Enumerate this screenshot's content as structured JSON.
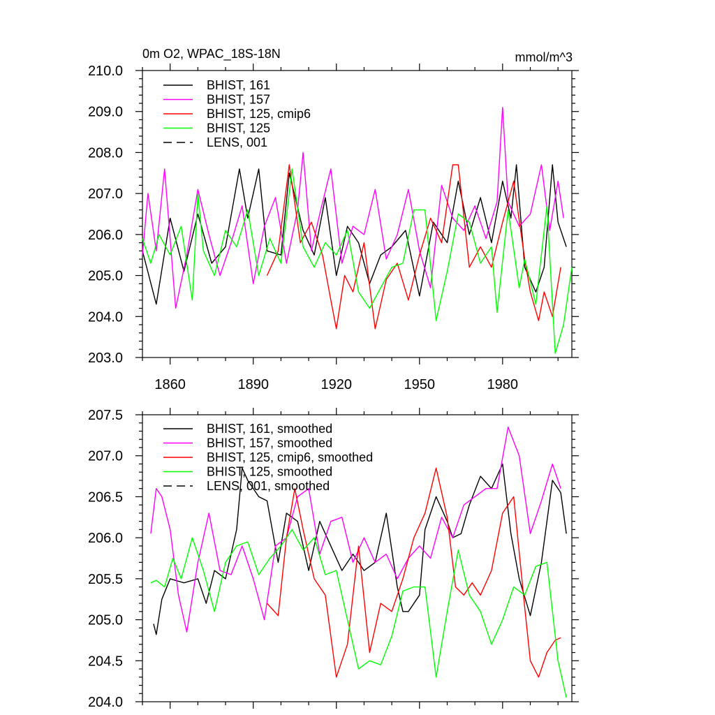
{
  "chart_data": [
    {
      "type": "line",
      "title_left": "0m O2, WPAC_18S-18N",
      "title_right": "mmol/m^3",
      "xlim": [
        1850,
        2005
      ],
      "ylim": [
        203.0,
        210.0
      ],
      "yticks": [
        203.0,
        204.0,
        205.0,
        206.0,
        207.0,
        208.0,
        209.0,
        210.0
      ],
      "ytick_labels": [
        "203.0",
        "204.0",
        "205.0",
        "206.0",
        "207.0",
        "208.0",
        "209.0",
        "210.0"
      ],
      "xticks": [
        1860,
        1890,
        1920,
        1950,
        1980
      ],
      "xtick_labels": [
        "1860",
        "1890",
        "1920",
        "1950",
        "1980"
      ],
      "legend": [
        {
          "label": "BHIST, 161",
          "color": "#000000",
          "dash": "solid"
        },
        {
          "label": "BHIST, 157",
          "color": "#ff00ff",
          "dash": "solid"
        },
        {
          "label": "BHIST, 125, cmip6",
          "color": "#ff0000",
          "dash": "solid"
        },
        {
          "label": "BHIST, 125",
          "color": "#00ff00",
          "dash": "solid"
        },
        {
          "label": "LENS, 001",
          "color": "#000000",
          "dash": "dashed"
        }
      ],
      "series": [
        {
          "name": "BHIST, 161",
          "color": "#000000",
          "x": [
            1850,
            1855,
            1860,
            1865,
            1870,
            1875,
            1880,
            1885,
            1888,
            1892,
            1895,
            1900,
            1903,
            1908,
            1912,
            1916,
            1920,
            1924,
            1928,
            1932,
            1936,
            1940,
            1945,
            1950,
            1955,
            1960,
            1964,
            1968,
            1972,
            1976,
            1980,
            1983,
            1985,
            1988,
            1992,
            1995,
            1998,
            2000,
            2003
          ],
          "y": [
            205.6,
            204.3,
            206.4,
            205.1,
            206.5,
            205.3,
            205.7,
            207.6,
            206.4,
            207.6,
            205.6,
            205.5,
            207.5,
            206.1,
            205.5,
            206.9,
            205.0,
            206.2,
            205.8,
            204.8,
            205.5,
            205.7,
            206.1,
            204.5,
            206.3,
            205.8,
            207.3,
            206.0,
            206.9,
            205.8,
            207.3,
            206.4,
            207.7,
            205.2,
            204.6,
            205.2,
            207.7,
            206.3,
            205.7
          ]
        },
        {
          "name": "BHIST, 157",
          "color": "#ff00ff",
          "x": [
            1850,
            1852,
            1855,
            1858,
            1862,
            1866,
            1870,
            1874,
            1878,
            1882,
            1886,
            1890,
            1894,
            1898,
            1902,
            1906,
            1908,
            1911,
            1914,
            1918,
            1922,
            1926,
            1930,
            1934,
            1938,
            1942,
            1946,
            1950,
            1954,
            1958,
            1962,
            1966,
            1970,
            1974,
            1978,
            1980,
            1982,
            1986,
            1990,
            1994,
            1997,
            2000,
            2002
          ],
          "y": [
            205.5,
            207.0,
            205.6,
            207.6,
            204.2,
            205.5,
            207.1,
            206.0,
            205.0,
            205.8,
            206.7,
            204.8,
            206.2,
            206.9,
            205.3,
            206.6,
            208.0,
            205.6,
            206.5,
            207.6,
            205.3,
            206.2,
            206.0,
            207.1,
            205.4,
            206.0,
            207.1,
            205.6,
            204.7,
            207.2,
            206.4,
            206.1,
            206.7,
            205.9,
            206.8,
            209.1,
            206.8,
            206.2,
            206.5,
            207.7,
            206.1,
            207.3,
            206.4
          ]
        },
        {
          "name": "BHIST, 125, cmip6",
          "color": "#ff0000",
          "x": [
            1895,
            1899,
            1903,
            1907,
            1911,
            1915,
            1918,
            1920,
            1923,
            1926,
            1930,
            1934,
            1938,
            1942,
            1946,
            1950,
            1954,
            1958,
            1962,
            1964,
            1968,
            1972,
            1976,
            1980,
            1984,
            1988,
            1990,
            1993,
            1995,
            1998,
            2001
          ],
          "y": [
            205.0,
            205.6,
            207.7,
            205.8,
            206.3,
            205.5,
            204.4,
            203.7,
            205.0,
            204.6,
            205.8,
            203.7,
            204.9,
            205.3,
            204.4,
            205.5,
            206.4,
            205.8,
            207.7,
            207.7,
            205.2,
            205.7,
            205.2,
            206.3,
            207.3,
            205.4,
            204.6,
            203.9,
            204.6,
            204.0,
            205.2
          ]
        },
        {
          "name": "BHIST, 125",
          "color": "#00ff00",
          "x": [
            1850,
            1853,
            1856,
            1860,
            1864,
            1868,
            1870,
            1872,
            1876,
            1880,
            1884,
            1888,
            1892,
            1896,
            1900,
            1904,
            1908,
            1912,
            1916,
            1920,
            1924,
            1928,
            1932,
            1936,
            1940,
            1944,
            1948,
            1952,
            1956,
            1960,
            1964,
            1968,
            1972,
            1976,
            1978,
            1982,
            1986,
            1988,
            1992,
            1996,
            1999,
            2002,
            2005
          ],
          "y": [
            205.9,
            205.3,
            206.0,
            205.5,
            206.2,
            204.4,
            207.0,
            205.6,
            205.0,
            206.1,
            205.7,
            206.6,
            205.0,
            205.9,
            205.3,
            207.6,
            205.7,
            205.2,
            205.8,
            205.5,
            206.1,
            204.6,
            204.2,
            204.7,
            205.2,
            205.3,
            206.6,
            206.6,
            203.9,
            205.1,
            206.5,
            206.3,
            205.3,
            205.7,
            204.1,
            206.6,
            204.7,
            205.4,
            204.3,
            206.7,
            203.1,
            203.8,
            205.2
          ]
        }
      ]
    },
    {
      "type": "line",
      "xlim": [
        1850,
        2005
      ],
      "ylim": [
        204.0,
        207.5
      ],
      "yticks": [
        204.0,
        204.5,
        205.0,
        205.5,
        206.0,
        206.5,
        207.0,
        207.5
      ],
      "ytick_labels": [
        "204.0",
        "204.5",
        "205.0",
        "205.5",
        "206.0",
        "206.5",
        "207.0",
        "207.5"
      ],
      "xticks": [
        1860,
        1890,
        1920,
        1950,
        1980
      ],
      "legend": [
        {
          "label": "BHIST, 161, smoothed",
          "color": "#000000",
          "dash": "solid"
        },
        {
          "label": "BHIST, 157, smoothed",
          "color": "#ff00ff",
          "dash": "solid"
        },
        {
          "label": "BHIST, 125, cmip6, smoothed",
          "color": "#ff0000",
          "dash": "solid"
        },
        {
          "label": "BHIST, 125, smoothed",
          "color": "#00ff00",
          "dash": "solid"
        },
        {
          "label": "LENS, 001, smoothed",
          "color": "#000000",
          "dash": "dashed"
        }
      ],
      "series": [
        {
          "name": "BHIST, 161, smoothed",
          "color": "#000000",
          "x": [
            1854,
            1855,
            1857,
            1860,
            1865,
            1870,
            1873,
            1876,
            1880,
            1884,
            1886,
            1888,
            1892,
            1895,
            1899,
            1902,
            1906,
            1910,
            1914,
            1918,
            1922,
            1926,
            1930,
            1934,
            1938,
            1942,
            1944,
            1946,
            1950,
            1952,
            1956,
            1960,
            1962,
            1965,
            1968,
            1972,
            1976,
            1980,
            1983,
            1986,
            1990,
            1994,
            1998,
            2001,
            2003
          ],
          "y": [
            204.95,
            204.82,
            205.25,
            205.5,
            205.45,
            205.5,
            205.2,
            205.6,
            205.5,
            206.1,
            206.85,
            206.7,
            206.5,
            206.45,
            205.7,
            206.3,
            206.2,
            205.6,
            206.2,
            205.9,
            205.6,
            205.8,
            205.6,
            205.7,
            206.3,
            205.4,
            205.1,
            205.1,
            205.3,
            206.1,
            206.5,
            206.2,
            206.0,
            206.05,
            206.4,
            206.75,
            206.6,
            206.9,
            206.05,
            205.5,
            205.05,
            205.7,
            206.7,
            206.55,
            206.05
          ]
        },
        {
          "name": "BHIST, 157, smoothed",
          "color": "#ff00ff",
          "x": [
            1853,
            1855,
            1857,
            1860,
            1863,
            1866,
            1870,
            1874,
            1878,
            1882,
            1886,
            1890,
            1894,
            1898,
            1902,
            1906,
            1910,
            1914,
            1918,
            1922,
            1926,
            1930,
            1934,
            1938,
            1942,
            1946,
            1950,
            1954,
            1958,
            1962,
            1966,
            1970,
            1974,
            1978,
            1982,
            1986,
            1990,
            1994,
            1998,
            2001
          ],
          "y": [
            206.05,
            206.6,
            206.5,
            206.1,
            205.3,
            204.85,
            205.7,
            206.3,
            205.6,
            205.55,
            205.9,
            205.5,
            205.0,
            205.9,
            206.0,
            206.5,
            206.6,
            205.8,
            206.2,
            206.25,
            205.7,
            206.0,
            205.7,
            205.8,
            205.5,
            205.75,
            205.9,
            205.75,
            206.25,
            206.0,
            206.4,
            206.5,
            206.6,
            206.6,
            207.35,
            207.0,
            206.05,
            206.45,
            206.9,
            206.6
          ]
        },
        {
          "name": "BHIST, 125, cmip6, smoothed",
          "color": "#ff0000",
          "x": [
            1895,
            1899,
            1902,
            1905,
            1908,
            1912,
            1916,
            1920,
            1924,
            1928,
            1932,
            1936,
            1940,
            1944,
            1948,
            1952,
            1956,
            1960,
            1963,
            1966,
            1969,
            1972,
            1976,
            1980,
            1984,
            1988,
            1990,
            1993,
            1996,
            1999,
            2001
          ],
          "y": [
            205.2,
            205.05,
            206.0,
            206.6,
            206.1,
            205.5,
            205.3,
            204.3,
            204.7,
            205.9,
            204.6,
            205.2,
            205.1,
            205.5,
            206.0,
            206.3,
            206.85,
            206.25,
            205.4,
            205.3,
            205.45,
            205.3,
            205.6,
            206.3,
            206.5,
            205.15,
            204.5,
            204.3,
            204.6,
            204.75,
            204.78
          ]
        },
        {
          "name": "BHIST, 125, smoothed",
          "color": "#00ff00",
          "x": [
            1853,
            1855,
            1858,
            1861,
            1864,
            1868,
            1872,
            1876,
            1880,
            1884,
            1888,
            1892,
            1896,
            1900,
            1904,
            1908,
            1912,
            1916,
            1920,
            1924,
            1928,
            1932,
            1936,
            1940,
            1944,
            1948,
            1952,
            1956,
            1960,
            1964,
            1968,
            1972,
            1976,
            1980,
            1984,
            1988,
            1992,
            1996,
            2000,
            2003
          ],
          "y": [
            205.45,
            205.48,
            205.4,
            205.75,
            205.5,
            206.0,
            205.6,
            205.1,
            205.7,
            205.9,
            205.95,
            205.55,
            205.75,
            205.9,
            206.1,
            205.85,
            206.0,
            205.55,
            205.6,
            205.0,
            204.4,
            204.5,
            204.45,
            204.8,
            205.35,
            205.4,
            205.4,
            204.3,
            205.1,
            205.85,
            205.3,
            205.1,
            204.7,
            205.0,
            205.4,
            205.3,
            205.65,
            205.7,
            204.5,
            204.05
          ]
        }
      ]
    }
  ]
}
